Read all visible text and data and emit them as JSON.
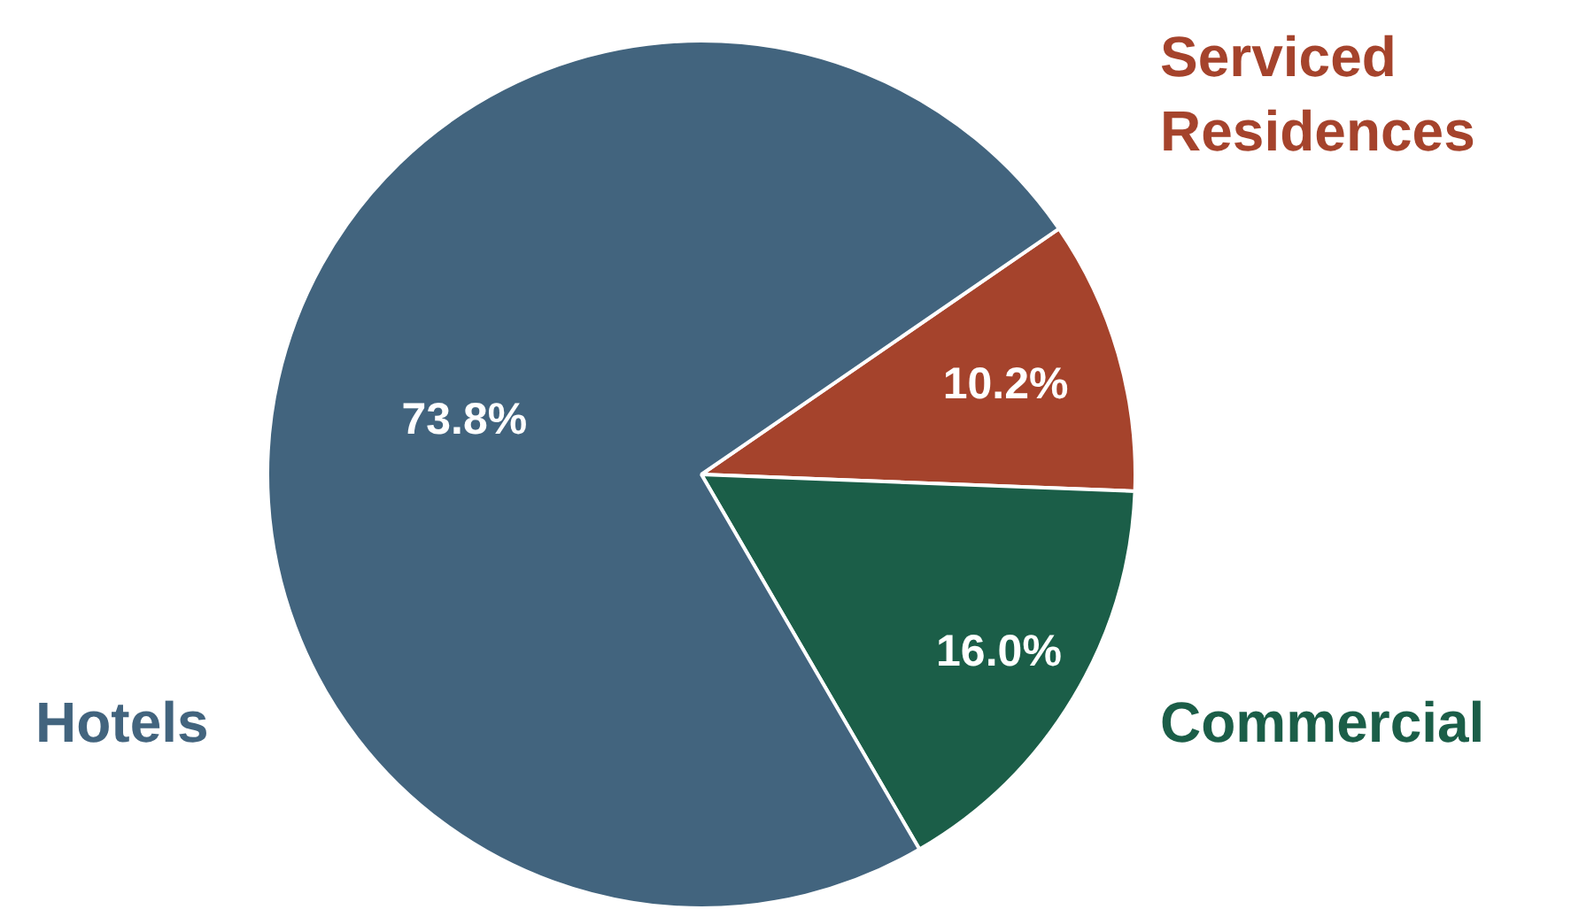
{
  "chart_data": {
    "type": "pie",
    "categories": [
      "Serviced Residences",
      "Commercial",
      "Hotels"
    ],
    "values": [
      10.2,
      16.0,
      73.8
    ],
    "colors": [
      "#a5432c",
      "#1b5e48",
      "#42647e"
    ],
    "value_labels": [
      "10.2%",
      "16.0%",
      "73.8%"
    ],
    "legend": false
  }
}
